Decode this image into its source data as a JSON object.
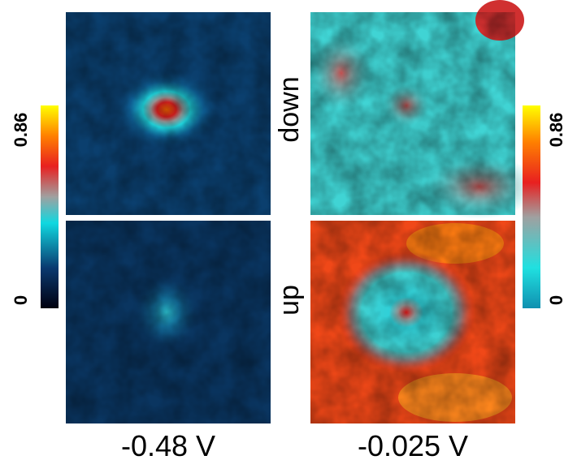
{
  "colorbars": [
    {
      "ticks": [
        0,
        0.86
      ]
    },
    {
      "ticks": [
        0,
        0.86
      ]
    }
  ],
  "row_labels": [
    "down",
    "up"
  ],
  "column_labels": [
    "-0.48 V",
    "-0.025 V"
  ]
}
